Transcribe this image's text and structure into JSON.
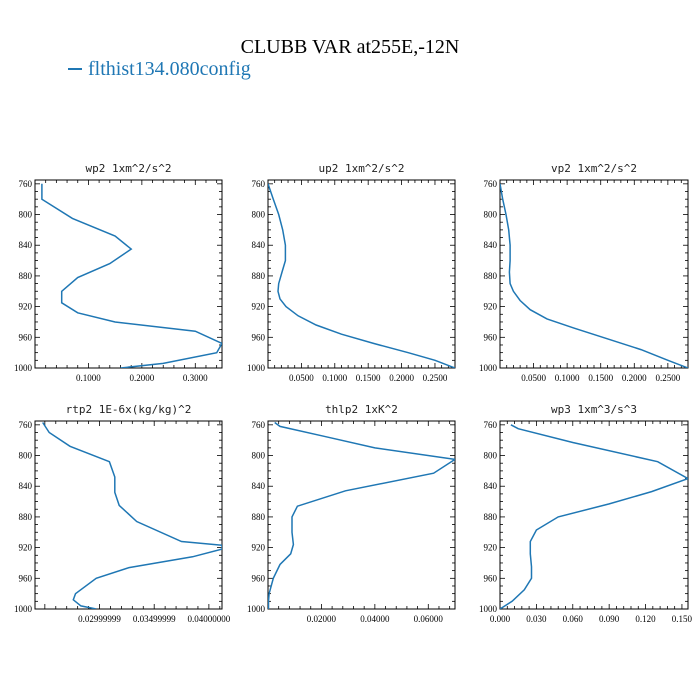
{
  "title": "CLUBB VAR at255E,-12N",
  "legend": {
    "label": "flthist134.080config",
    "color": "#1f77b4"
  },
  "chart_data": [
    {
      "type": "line",
      "title": "wp2  1xm^2/s^2",
      "x": [
        0.013,
        0.013,
        0.07,
        0.15,
        0.18,
        0.14,
        0.08,
        0.05,
        0.05,
        0.08,
        0.15,
        0.3,
        0.35,
        0.34,
        0.24,
        0.16
      ],
      "y": [
        760,
        780,
        805,
        828,
        845,
        864,
        882,
        900,
        915,
        928,
        940,
        952,
        968,
        980,
        994,
        1000
      ],
      "xlim": [
        0.0,
        0.35
      ],
      "xticks": [
        0.1,
        0.2,
        0.3
      ],
      "xticklabels": [
        "0.1000",
        "0.2000",
        "0.3000"
      ],
      "ylim": [
        1000,
        755
      ],
      "yticks": [
        760,
        800,
        840,
        880,
        920,
        960,
        1000
      ],
      "yticklabels": [
        "760",
        "800",
        "840",
        "880",
        "920",
        "960",
        "1000"
      ]
    },
    {
      "type": "line",
      "title": "up2  1xm^2/s^2",
      "x": [
        0.0,
        0.008,
        0.016,
        0.022,
        0.026,
        0.026,
        0.021,
        0.016,
        0.015,
        0.018,
        0.027,
        0.045,
        0.072,
        0.11,
        0.158,
        0.21,
        0.25,
        0.28
      ],
      "y": [
        760,
        780,
        800,
        820,
        840,
        860,
        875,
        890,
        900,
        910,
        920,
        932,
        944,
        956,
        968,
        980,
        990,
        1000
      ],
      "xlim": [
        0.0,
        0.28
      ],
      "xticks": [
        0.05,
        0.1,
        0.15,
        0.2,
        0.25
      ],
      "xticklabels": [
        "0.0500",
        "0.1000",
        "0.1500",
        "0.2000",
        "0.2500"
      ],
      "ylim": [
        1000,
        755
      ],
      "yticks": [
        760,
        800,
        840,
        880,
        920,
        960,
        1000
      ],
      "yticklabels": [
        "760",
        "800",
        "840",
        "880",
        "920",
        "960",
        "1000"
      ]
    },
    {
      "type": "line",
      "title": "vp2  1xm^2/s^2",
      "x": [
        0.0,
        0.004,
        0.009,
        0.013,
        0.015,
        0.015,
        0.014,
        0.015,
        0.02,
        0.03,
        0.045,
        0.07,
        0.11,
        0.16,
        0.21,
        0.25,
        0.28
      ],
      "y": [
        760,
        780,
        800,
        820,
        840,
        860,
        875,
        890,
        900,
        912,
        924,
        936,
        948,
        962,
        976,
        990,
        1000
      ],
      "xlim": [
        0.0,
        0.28
      ],
      "xticks": [
        0.05,
        0.1,
        0.15,
        0.2,
        0.25
      ],
      "xticklabels": [
        "0.0500",
        "0.1000",
        "0.1500",
        "0.2000",
        "0.2500"
      ],
      "ylim": [
        1000,
        755
      ],
      "yticks": [
        760,
        800,
        840,
        880,
        920,
        960,
        1000
      ],
      "yticklabels": [
        "760",
        "800",
        "840",
        "880",
        "920",
        "960",
        "1000"
      ]
    },
    {
      "type": "line",
      "title": "rtp2  1E-6x(kg/kg)^2",
      "x": [
        0.0248,
        0.0254,
        0.0273,
        0.0309,
        0.0314,
        0.0314,
        0.0318,
        0.0334,
        0.0375,
        0.0412,
        0.0412,
        0.0385,
        0.0327,
        0.0297,
        0.0278,
        0.0276,
        0.0283,
        0.0297
      ],
      "y": [
        757,
        770,
        788,
        808,
        828,
        848,
        865,
        886,
        912,
        917,
        922,
        932,
        946,
        960,
        980,
        988,
        996,
        1000
      ],
      "xlim": [
        0.0241,
        0.0412
      ],
      "xticks": [
        0.03,
        0.035,
        0.04
      ],
      "xticklabels": [
        "0.02999999",
        "0.03499999",
        "0.04000000"
      ],
      "ylim": [
        1000,
        755
      ],
      "yticks": [
        760,
        800,
        840,
        880,
        920,
        960,
        1000
      ],
      "yticklabels": [
        "760",
        "800",
        "840",
        "880",
        "920",
        "960",
        "1000"
      ]
    },
    {
      "type": "line",
      "title": "thlp2  1xK^2",
      "x": [
        0.0025,
        0.0045,
        0.021,
        0.04,
        0.07,
        0.062,
        0.029,
        0.011,
        0.009,
        0.009,
        0.0095,
        0.0085,
        0.0045,
        0.002,
        0.0004,
        0.0002,
        0.0002
      ],
      "y": [
        757,
        762,
        775,
        790,
        805,
        823,
        846,
        866,
        880,
        900,
        916,
        928,
        942,
        960,
        980,
        990,
        1000
      ],
      "xlim": [
        0.0,
        0.07
      ],
      "xticks": [
        0.02,
        0.04,
        0.06
      ],
      "xticklabels": [
        "0.02000",
        "0.04000",
        "0.06000"
      ],
      "ylim": [
        1000,
        755
      ],
      "yticks": [
        760,
        800,
        840,
        880,
        920,
        960,
        1000
      ],
      "yticklabels": [
        "760",
        "800",
        "840",
        "880",
        "920",
        "960",
        "1000"
      ]
    },
    {
      "type": "line",
      "title": "wp3  1xm^3/s^3",
      "x": [
        0.009,
        0.015,
        0.06,
        0.13,
        0.155,
        0.125,
        0.09,
        0.048,
        0.03,
        0.025,
        0.025,
        0.026,
        0.026,
        0.02,
        0.01,
        0.0
      ],
      "y": [
        760,
        765,
        783,
        808,
        830,
        847,
        863,
        880,
        897,
        912,
        928,
        945,
        960,
        975,
        990,
        1000
      ],
      "xlim": [
        0.0,
        0.155
      ],
      "xticks": [
        0.0,
        0.03,
        0.06,
        0.09,
        0.12,
        0.15
      ],
      "xticklabels": [
        "0.000",
        "0.030",
        "0.060",
        "0.090",
        "0.120",
        "0.150"
      ],
      "ylim": [
        1000,
        755
      ],
      "yticks": [
        760,
        800,
        840,
        880,
        920,
        960,
        1000
      ],
      "yticklabels": [
        "760",
        "800",
        "840",
        "880",
        "920",
        "960",
        "1000"
      ]
    }
  ]
}
